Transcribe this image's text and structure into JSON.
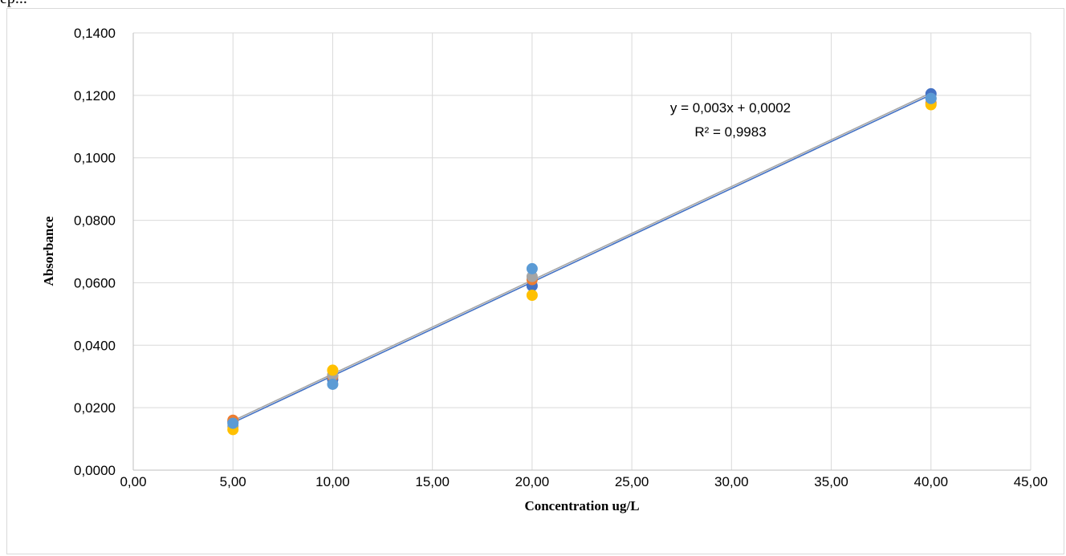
{
  "caption_fragment": "ep...",
  "chart_data": {
    "type": "scatter",
    "title": "",
    "xlabel": "Concentration ug/L",
    "ylabel": "Absorbance",
    "xlim": [
      0,
      45
    ],
    "ylim": [
      0,
      0.14
    ],
    "x_ticks": [
      "0,00",
      "5,00",
      "10,00",
      "15,00",
      "20,00",
      "25,00",
      "30,00",
      "35,00",
      "40,00",
      "45,00"
    ],
    "y_ticks": [
      "0,0000",
      "0,0200",
      "0,0400",
      "0,0600",
      "0,0800",
      "0,1000",
      "0,1200",
      "0,1400"
    ],
    "grid": true,
    "legend": "none",
    "series": [
      {
        "color": "#4472c4",
        "x": [
          5,
          10,
          20,
          40
        ],
        "y": [
          0.0155,
          0.029,
          0.059,
          0.1205
        ]
      },
      {
        "color": "#ed7d31",
        "x": [
          5,
          10,
          20,
          40
        ],
        "y": [
          0.016,
          0.03,
          0.061,
          0.1175
        ]
      },
      {
        "color": "#a5a5a5",
        "x": [
          5,
          10,
          20,
          40
        ],
        "y": [
          0.014,
          0.0305,
          0.062,
          0.119
        ]
      },
      {
        "color": "#ffc000",
        "x": [
          5,
          10,
          20,
          40
        ],
        "y": [
          0.013,
          0.032,
          0.056,
          0.117
        ]
      },
      {
        "color": "#5b9bd5",
        "x": [
          5,
          10,
          20,
          40
        ],
        "y": [
          0.015,
          0.0275,
          0.0645,
          0.119
        ]
      }
    ],
    "trendlines": [
      {
        "color": "#4472c4",
        "x": [
          5,
          40
        ],
        "y": [
          0.0152,
          0.1202
        ]
      },
      {
        "color": "#a5a5a5",
        "x": [
          5,
          40
        ],
        "y": [
          0.0158,
          0.1208
        ]
      }
    ],
    "annotations": {
      "equation": "y = 0,003x + 0,0002",
      "r_squared": "R² = 0,9983"
    }
  }
}
